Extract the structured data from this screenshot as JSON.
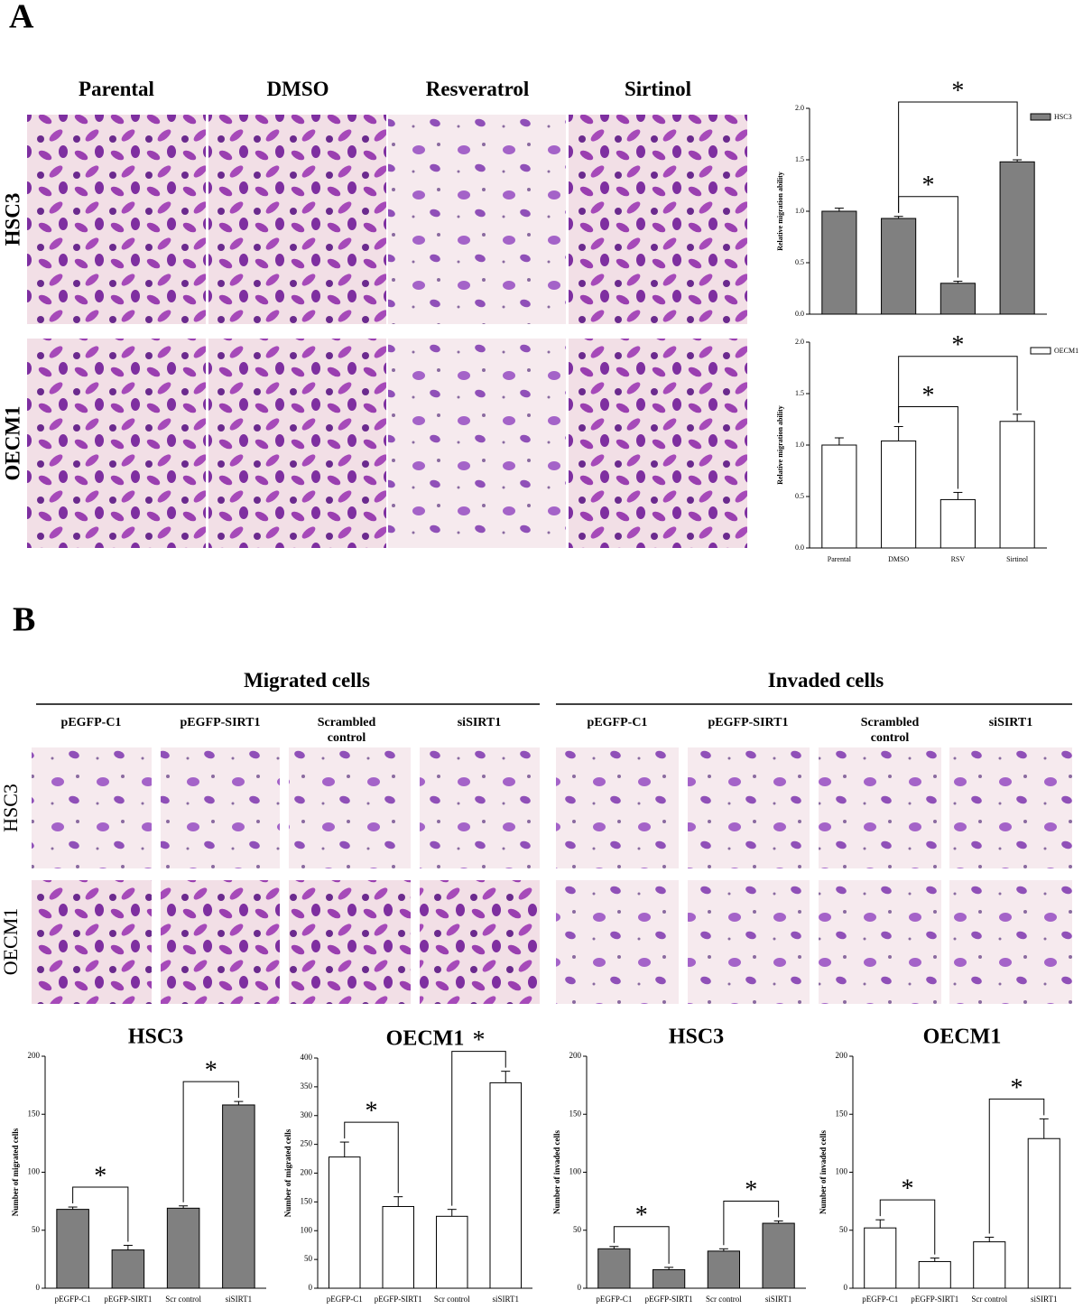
{
  "panel_a": {
    "label": "A",
    "columns": [
      "Parental",
      "DMSO",
      "Resveratrol",
      "Sirtinol"
    ],
    "rows": [
      "HSC3",
      "OECM1"
    ]
  },
  "panel_b": {
    "label": "B",
    "groups": [
      "Migrated cells",
      "Invaded cells"
    ],
    "columns": [
      "pEGFP-C1",
      "pEGFP-SIRT1",
      "Scrambled control",
      "siSIRT1",
      "pEGFP-C1",
      "pEGFP-SIRT1",
      "Scrambled control",
      "siSIRT1"
    ],
    "rows": [
      "HSC3",
      "OECM1"
    ]
  },
  "chart_data": [
    {
      "type": "bar",
      "ylabel": "Relative migration ability",
      "categories": [
        null,
        null,
        null,
        null
      ],
      "series": [
        {
          "name": "HSC3",
          "color": "#808080",
          "values": [
            1.0,
            0.93,
            0.3,
            1.48
          ],
          "errors": [
            0.03,
            0.02,
            0.02,
            0.02
          ]
        }
      ],
      "ylim": [
        0,
        2
      ],
      "yticks": [
        {
          "value": 0,
          "label": "0.0"
        },
        {
          "value": 0.5,
          "label": "0.5"
        },
        {
          "value": 1,
          "label": "1.0"
        },
        {
          "value": 1.5,
          "label": "1.5"
        },
        {
          "value": 2,
          "label": "2.0"
        }
      ],
      "legend": "top-right",
      "annotations": [
        "*",
        "*"
      ]
    },
    {
      "type": "bar",
      "ylabel": "Relative migration ability",
      "categories": [
        "Parental",
        "DMSO",
        "RSV",
        "Sirtinol"
      ],
      "series": [
        {
          "name": "OECM1",
          "color": "#ffffff",
          "values": [
            1.0,
            1.04,
            0.47,
            1.23
          ],
          "errors": [
            0.07,
            0.14,
            0.07,
            0.07
          ]
        }
      ],
      "ylim": [
        0,
        2
      ],
      "yticks": [
        {
          "value": 0,
          "label": "0.0"
        },
        {
          "value": 0.5,
          "label": "0.5"
        },
        {
          "value": 1,
          "label": "1.0"
        },
        {
          "value": 1.5,
          "label": "1.5"
        },
        {
          "value": 2,
          "label": "2.0"
        }
      ],
      "legend": "top-right",
      "annotations": [
        "*",
        "*"
      ]
    },
    {
      "type": "bar",
      "title": "HSC3",
      "ylabel": "Number of migrated cells",
      "categories": [
        "pEGFP-C1",
        "pEGFP-SIRT1",
        "Scr control",
        "siSIRT1"
      ],
      "series": [
        {
          "color": "#808080",
          "values": [
            68,
            33,
            69,
            158
          ],
          "errors": [
            2,
            4,
            2,
            3
          ]
        }
      ],
      "ylim": [
        0,
        200
      ],
      "yticks": [
        0,
        50,
        100,
        150,
        200
      ],
      "annotations": [
        "*",
        "*"
      ]
    },
    {
      "type": "bar",
      "title": "OECM1",
      "ylabel": "Number of migrated cells",
      "categories": [
        "pEGFP-C1",
        "pEGFP-SIRT1",
        "Scr control",
        "siSIRT1"
      ],
      "series": [
        {
          "color": "#ffffff",
          "values": [
            228,
            142,
            125,
            357
          ],
          "errors": [
            26,
            17,
            12,
            20
          ]
        }
      ],
      "ylim": [
        0,
        400
      ],
      "yticks": [
        0,
        50,
        100,
        150,
        200,
        250,
        300,
        350,
        400
      ],
      "annotations": [
        "*",
        "*"
      ]
    },
    {
      "type": "bar",
      "title": "HSC3",
      "ylabel": "Number of invaded cells",
      "categories": [
        "pEGFP-C1",
        "pEGFP-SIRT1",
        "Scr control",
        "siSIRT1"
      ],
      "series": [
        {
          "color": "#808080",
          "values": [
            34,
            16,
            32,
            56
          ],
          "errors": [
            2,
            2,
            2,
            2
          ]
        }
      ],
      "ylim": [
        0,
        200
      ],
      "yticks": [
        0,
        50,
        100,
        150,
        200
      ],
      "annotations": [
        "*",
        "*"
      ]
    },
    {
      "type": "bar",
      "title": "OECM1",
      "ylabel": "Number of invaded cells",
      "categories": [
        "pEGFP-C1",
        "pEGFP-SIRT1",
        "Scr control",
        "siSIRT1"
      ],
      "series": [
        {
          "color": "#ffffff",
          "values": [
            52,
            23,
            40,
            129
          ],
          "errors": [
            7,
            3,
            4,
            17
          ]
        }
      ],
      "ylim": [
        0,
        200
      ],
      "yticks": [
        0,
        50,
        100,
        150,
        200
      ],
      "annotations": [
        "*",
        "*"
      ]
    }
  ]
}
